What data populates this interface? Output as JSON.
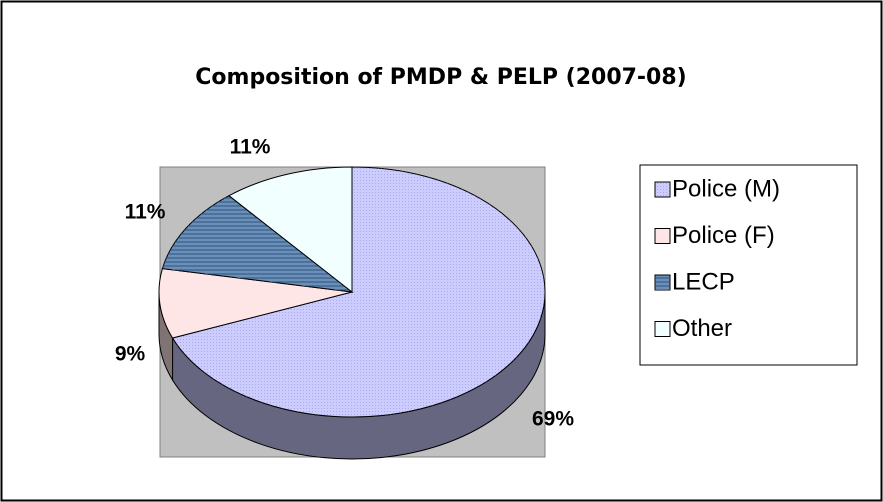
{
  "chart_data": {
    "type": "pie",
    "title": "Composition of PMDP & PELP (2007-08)",
    "categories": [
      "Police (M)",
      "Police (F)",
      "LECP",
      "Other"
    ],
    "values": [
      69,
      9,
      11,
      11
    ],
    "value_labels": [
      "69%",
      "9%",
      "11%",
      "11%"
    ],
    "colors": [
      "#ccccff",
      "#ffe6e6",
      "#6a8fb8",
      "#f2ffff"
    ],
    "legend": "right"
  }
}
